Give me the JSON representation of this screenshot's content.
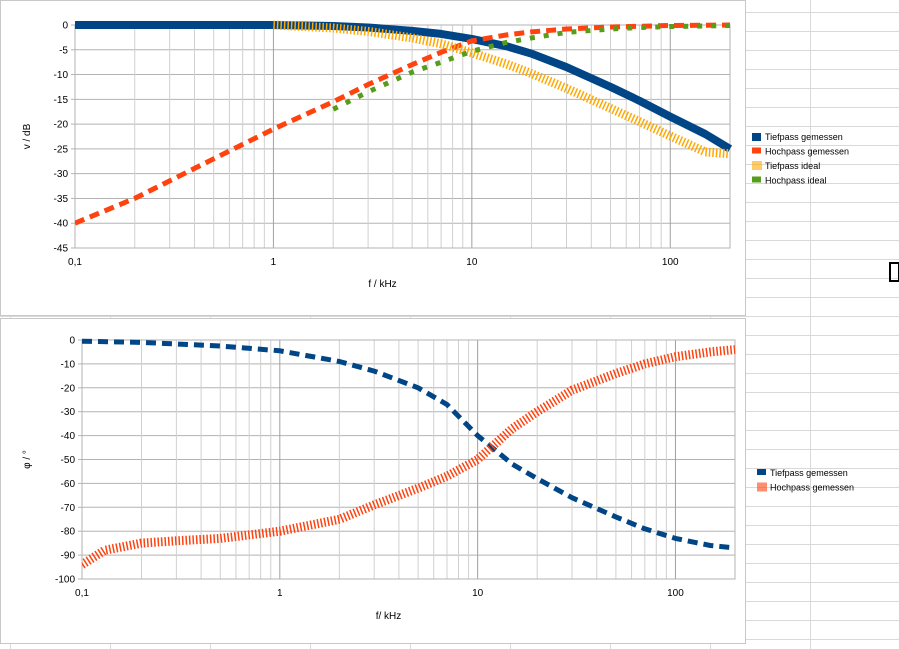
{
  "chart_data": [
    {
      "type": "line",
      "xscale": "log",
      "xlabel": "f / kHz",
      "ylabel": "v / dB",
      "xlim": [
        0.1,
        200
      ],
      "ylim": [
        -45,
        0
      ],
      "xticks": [
        "0,1",
        "1",
        "10",
        "100"
      ],
      "yticks": [
        "0",
        "-5",
        "-10",
        "-15",
        "-20",
        "-25",
        "-30",
        "-35",
        "-40",
        "-45"
      ],
      "grid": true,
      "legend_position": "right",
      "series": [
        {
          "name": "Tiefpass gemessen",
          "color": "#004586",
          "style": "thick",
          "x": [
            0.1,
            0.3,
            1,
            2,
            3,
            5,
            7,
            10,
            15,
            20,
            30,
            50,
            70,
            100,
            150,
            200
          ],
          "y": [
            0,
            0,
            0,
            -0.2,
            -0.5,
            -1.2,
            -1.8,
            -2.8,
            -4.3,
            -5.8,
            -8.5,
            -12.5,
            -15.3,
            -18.5,
            -22,
            -25
          ]
        },
        {
          "name": "Hochpass gemessen",
          "color": "#ff420e",
          "style": "dashed",
          "x": [
            0.1,
            0.2,
            0.5,
            1,
            2,
            3,
            5,
            7,
            10,
            15,
            20,
            30,
            50,
            100,
            200
          ],
          "y": [
            -40,
            -35,
            -27,
            -21,
            -15.5,
            -12,
            -8,
            -5.5,
            -3.2,
            -2,
            -1.4,
            -0.8,
            -0.4,
            -0.1,
            0
          ]
        },
        {
          "name": "Tiefpass ideal",
          "color": "#ffa800",
          "style": "hatched",
          "x": [
            1,
            2,
            3,
            5,
            7,
            10,
            15,
            20,
            30,
            50,
            70,
            100,
            150,
            200
          ],
          "y": [
            0,
            -0.6,
            -1.3,
            -2.6,
            -3.8,
            -5.6,
            -7.9,
            -9.8,
            -12.8,
            -16.8,
            -19.5,
            -22.4,
            -25.6,
            -26
          ]
        },
        {
          "name": "Hochpass ideal",
          "color": "#579d1c",
          "style": "dotted",
          "x": [
            2,
            3,
            5,
            7,
            10,
            15,
            20,
            30,
            50,
            70,
            100,
            150,
            200
          ],
          "y": [
            -17,
            -13.5,
            -9.5,
            -7.5,
            -5.3,
            -3.5,
            -2.6,
            -1.5,
            -0.8,
            -0.5,
            -0.3,
            -0.2,
            -0.1
          ]
        }
      ]
    },
    {
      "type": "line",
      "xscale": "log",
      "xlabel": "f/ kHz",
      "ylabel": "φ / °",
      "xlim": [
        0.1,
        200
      ],
      "ylim": [
        -100,
        0
      ],
      "xticks": [
        "0,1",
        "1",
        "10",
        "100"
      ],
      "yticks": [
        "0",
        "-10",
        "-20",
        "-30",
        "-40",
        "-50",
        "-60",
        "-70",
        "-80",
        "-90",
        "-100"
      ],
      "grid": true,
      "legend_position": "right",
      "series": [
        {
          "name": "Tiefpass gemessen",
          "color": "#004586",
          "style": "dashed",
          "x": [
            0.1,
            0.2,
            0.5,
            1,
            2,
            3,
            5,
            7,
            10,
            15,
            20,
            30,
            50,
            70,
            100,
            150,
            200
          ],
          "y": [
            -0.5,
            -1,
            -2.5,
            -4.5,
            -9,
            -13,
            -20,
            -27,
            -40,
            -52,
            -58,
            -66,
            -74,
            -79,
            -83,
            -86,
            -87
          ]
        },
        {
          "name": "Hochpass gemessen",
          "color": "#ff420e",
          "style": "hatched",
          "x": [
            0.1,
            0.13,
            0.2,
            0.3,
            0.5,
            1,
            2,
            3,
            5,
            7,
            10,
            15,
            20,
            30,
            50,
            70,
            100,
            150,
            200
          ],
          "y": [
            -94,
            -88,
            -85,
            -84,
            -83,
            -80,
            -75,
            -69,
            -62,
            -57,
            -50,
            -37,
            -30,
            -21,
            -14,
            -10,
            -7,
            -5,
            -4
          ]
        }
      ]
    }
  ]
}
